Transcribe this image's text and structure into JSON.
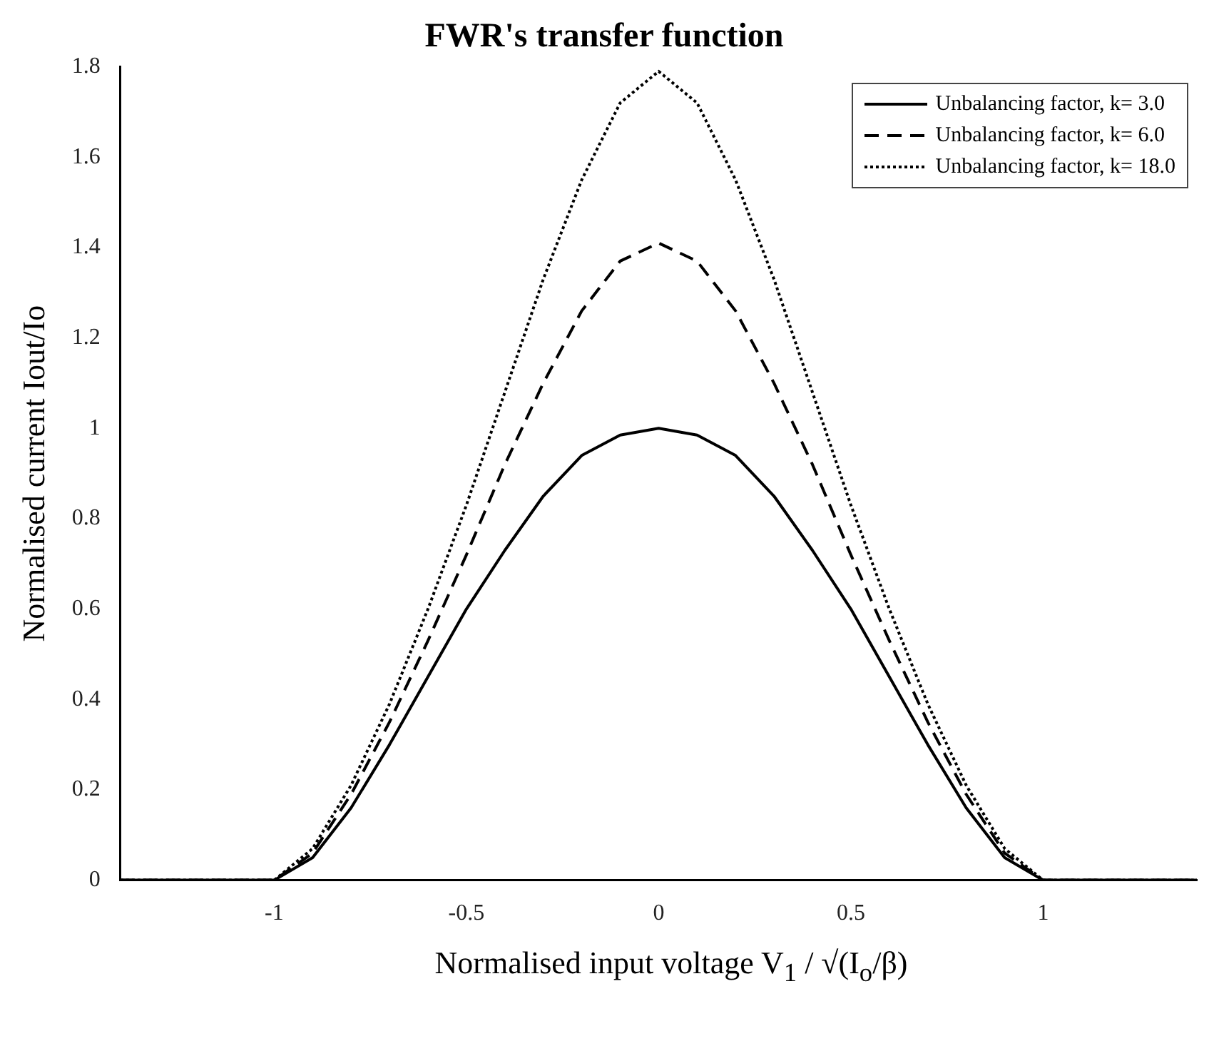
{
  "chart_data": {
    "type": "line",
    "title": "FWR's transfer function",
    "xlabel": "Normalised input voltage V$_{1}$ / √(I$_{o}$/β)",
    "ylabel": "Normalised current Iout/Io",
    "x": [
      -1.4,
      -1.2,
      -1.0,
      -0.9,
      -0.8,
      -0.7,
      -0.6,
      -0.5,
      -0.4,
      -0.3,
      -0.2,
      -0.1,
      0,
      0.1,
      0.2,
      0.3,
      0.4,
      0.5,
      0.6,
      0.7,
      0.8,
      0.9,
      1.0,
      1.2,
      1.4
    ],
    "series": [
      {
        "name": "Unbalancing factor, k= 3.0",
        "color": "#000000",
        "line_style": "solid",
        "values": [
          0,
          0,
          0,
          0.05,
          0.16,
          0.3,
          0.45,
          0.6,
          0.73,
          0.85,
          0.94,
          0.985,
          1.0,
          0.985,
          0.94,
          0.85,
          0.73,
          0.6,
          0.45,
          0.3,
          0.16,
          0.05,
          0,
          0,
          0
        ]
      },
      {
        "name": "Unbalancing factor, k= 6.0",
        "color": "#000000",
        "line_style": "dashed",
        "values": [
          0,
          0,
          0,
          0.06,
          0.19,
          0.35,
          0.53,
          0.72,
          0.92,
          1.1,
          1.26,
          1.37,
          1.41,
          1.37,
          1.26,
          1.1,
          0.92,
          0.72,
          0.53,
          0.35,
          0.19,
          0.06,
          0,
          0,
          0
        ]
      },
      {
        "name": "Unbalancing factor, k= 18.0",
        "color": "#000000",
        "line_style": "dotted",
        "values": [
          0,
          0,
          0,
          0.07,
          0.21,
          0.39,
          0.6,
          0.83,
          1.08,
          1.33,
          1.55,
          1.72,
          1.79,
          1.72,
          1.55,
          1.33,
          1.08,
          0.83,
          0.6,
          0.39,
          0.21,
          0.07,
          0,
          0,
          0
        ]
      }
    ],
    "xlim": [
      -1.4,
      1.4
    ],
    "xticks": [
      -1,
      -0.5,
      0,
      0.5,
      1
    ],
    "ylim": [
      0,
      1.8
    ],
    "yticks": [
      0,
      0.2,
      0.4,
      0.6,
      0.8,
      1,
      1.2,
      1.4,
      1.6,
      1.8
    ],
    "grid": false,
    "legend": "top right",
    "marker": "none"
  }
}
